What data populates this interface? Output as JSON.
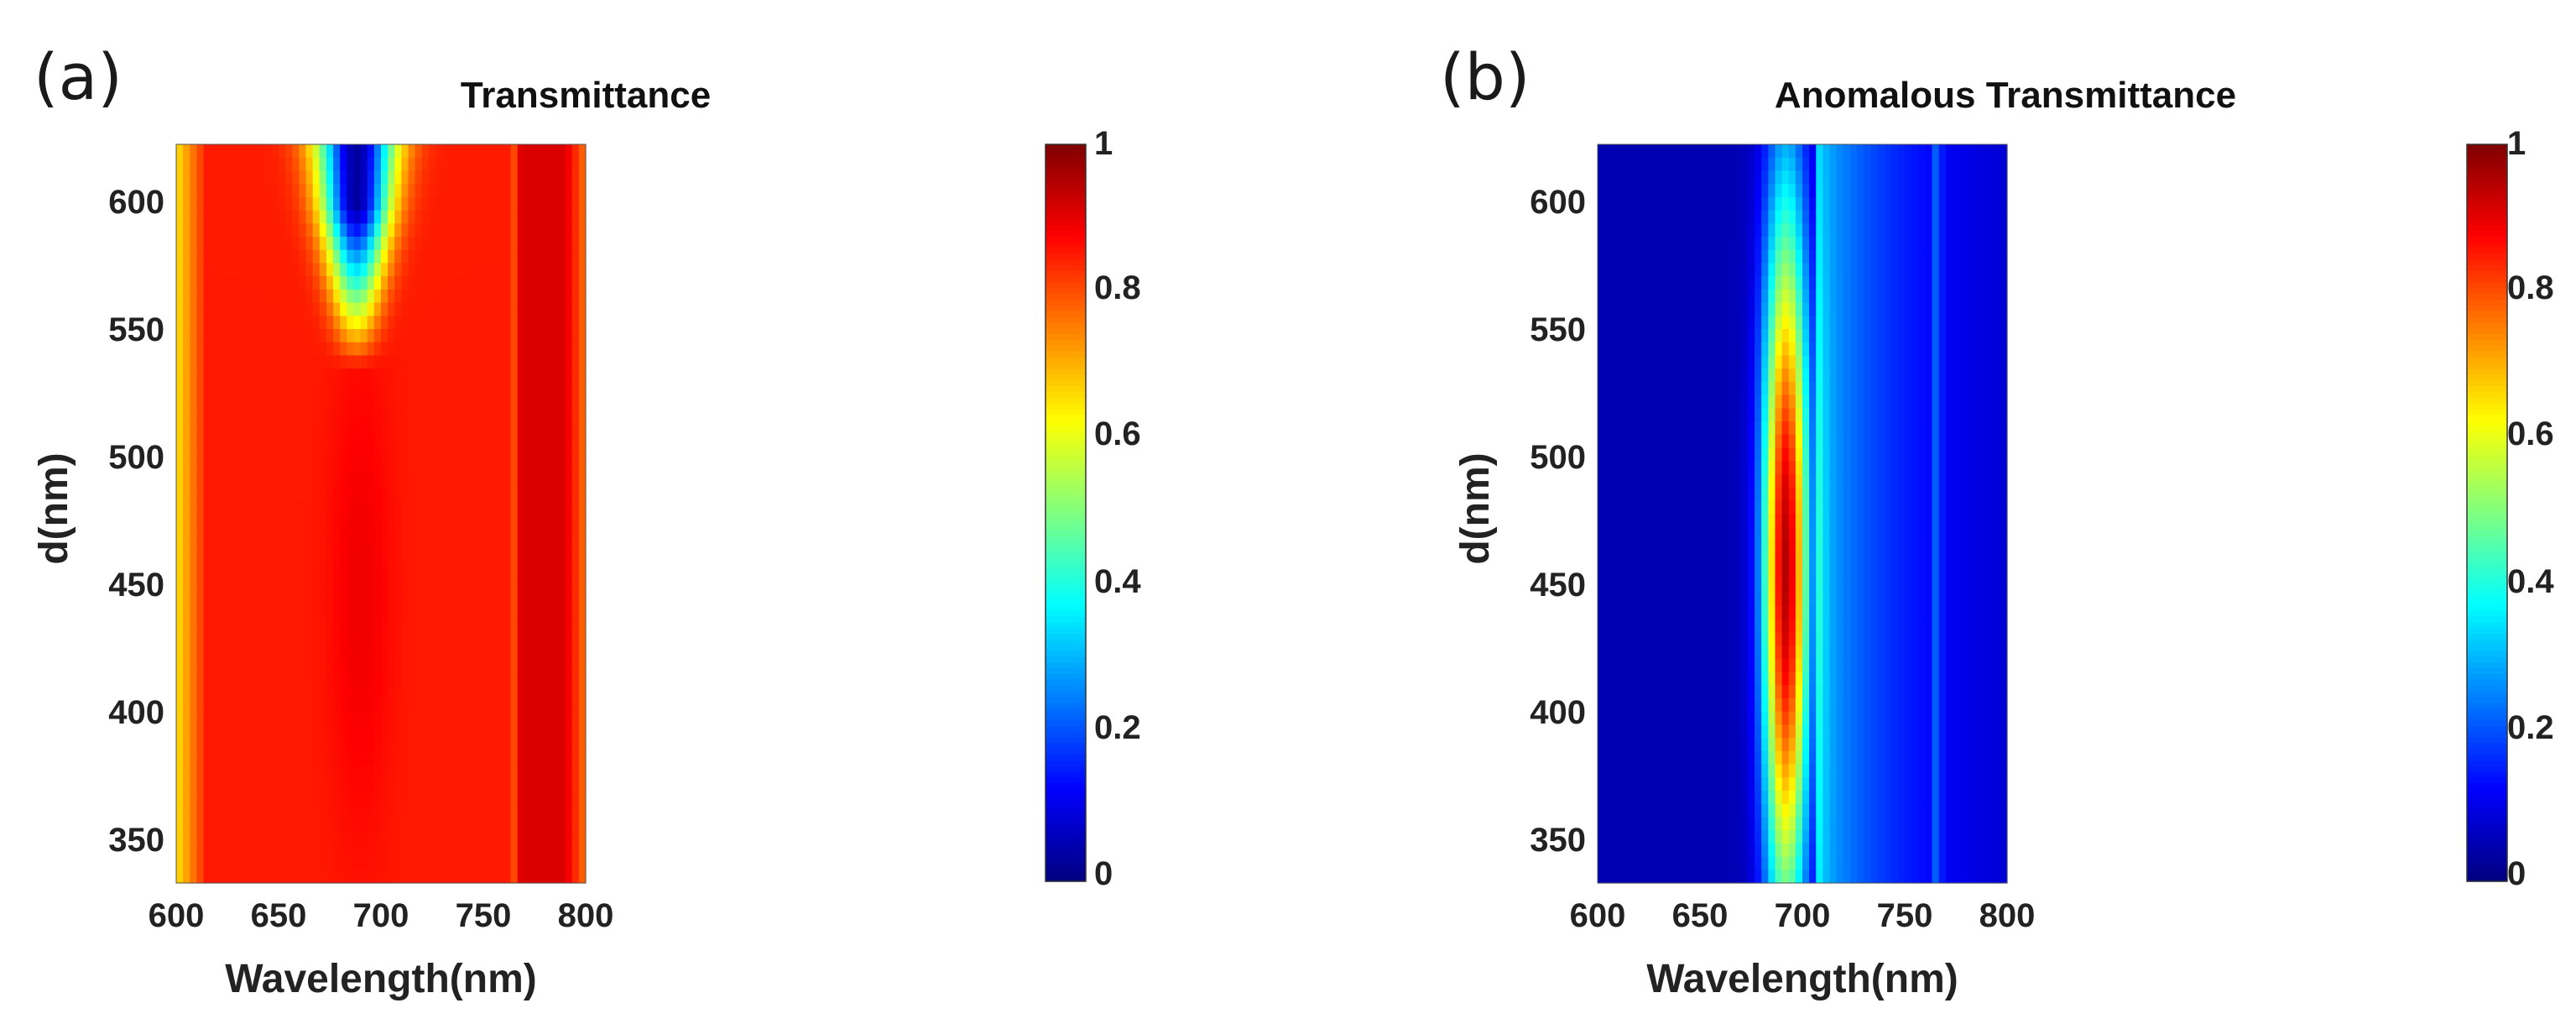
{
  "chart_data": [
    {
      "type": "heatmap",
      "panel_label": "(a)",
      "title": "Transmittance",
      "xlabel": "Wavelength(nm)",
      "ylabel": "d(nm)",
      "xlim": [
        600,
        800
      ],
      "ylim": [
        340,
        620
      ],
      "xticks": [
        "600",
        "650",
        "700",
        "750",
        "800"
      ],
      "yticks": [
        "350",
        "400",
        "450",
        "500",
        "550",
        "600"
      ],
      "colorbar": {
        "range": [
          0,
          1
        ],
        "ticks": [
          "0",
          "0.2",
          "0.4",
          "0.6",
          "0.8",
          "1"
        ],
        "colormap": "jet"
      },
      "features": {
        "background_level": 0.85,
        "dip": {
          "center_wavelength": 688,
          "min_value": 0.05,
          "extends_from_d": 540,
          "extends_to_d": 620
        },
        "edge_low_value": 0.65,
        "rayleigh_line_wavelength": 766,
        "sharp_edge_wavelength": 705
      }
    },
    {
      "type": "heatmap",
      "panel_label": "(b)",
      "title": "Anomalous Transmittance",
      "xlabel": "Wavelength(nm)",
      "ylabel": "d(nm)",
      "xlim": [
        600,
        800
      ],
      "ylim": [
        340,
        620
      ],
      "xticks": [
        "600",
        "650",
        "700",
        "750",
        "800"
      ],
      "yticks": [
        "350",
        "400",
        "450",
        "500",
        "550",
        "600"
      ],
      "colorbar": {
        "range": [
          0,
          1
        ],
        "ticks": [
          "0",
          "0.2",
          "0.4",
          "0.6",
          "0.8",
          "1"
        ],
        "colormap": "jet"
      },
      "features": {
        "background_level": 0.05,
        "peak": {
          "center_wavelength": 692,
          "max_value": 0.95,
          "center_d": 460,
          "extends_from_d": 340,
          "extends_to_d": 600
        },
        "rayleigh_line_wavelength": 766,
        "sharp_edge_wavelength": 705
      }
    }
  ]
}
